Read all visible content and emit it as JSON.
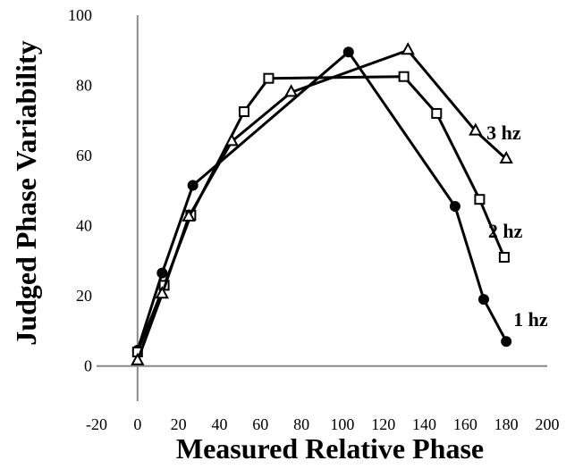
{
  "chart_data": {
    "type": "line",
    "xlabel": "Measured Relative Phase",
    "ylabel": "Judged Phase Variability",
    "xlim": [
      -20,
      200
    ],
    "ylim": [
      -10,
      100
    ],
    "xticks": [
      -20,
      0,
      20,
      40,
      60,
      80,
      100,
      120,
      140,
      160,
      180,
      200
    ],
    "yticks": [
      0,
      20,
      40,
      60,
      80,
      100
    ],
    "zero_lines": true,
    "grid": false,
    "series": [
      {
        "name": "1 hz",
        "marker": "filled-circle",
        "points": [
          [
            0,
            4.5
          ],
          [
            12,
            26.5
          ],
          [
            27,
            51.5
          ],
          [
            103,
            89.5
          ],
          [
            155,
            45.5
          ],
          [
            169,
            19
          ],
          [
            180,
            7
          ]
        ]
      },
      {
        "name": "2 hz",
        "marker": "open-square",
        "points": [
          [
            0,
            4
          ],
          [
            13,
            23
          ],
          [
            26,
            43
          ],
          [
            52,
            72.5
          ],
          [
            64,
            82
          ],
          [
            130,
            82.5
          ],
          [
            146,
            72
          ],
          [
            167,
            47.5
          ],
          [
            179,
            31
          ]
        ]
      },
      {
        "name": "3 hz",
        "marker": "open-triangle",
        "points": [
          [
            0,
            1.5
          ],
          [
            12,
            20.5
          ],
          [
            25,
            42.5
          ],
          [
            46,
            64
          ],
          [
            75,
            78
          ],
          [
            132,
            90
          ],
          [
            165,
            67
          ],
          [
            180,
            59
          ]
        ]
      }
    ]
  }
}
